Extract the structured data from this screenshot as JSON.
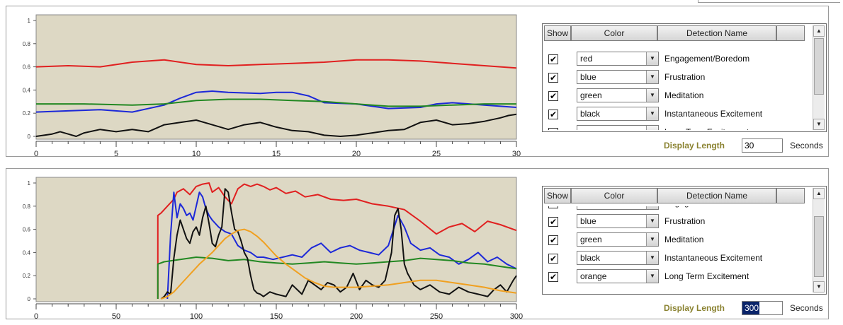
{
  "panels": [
    {
      "display_length_label": "Display Length",
      "display_length_value": "30",
      "display_length_unit": "Seconds",
      "headers": {
        "show": "Show",
        "color": "Color",
        "name": "Detection Name"
      },
      "rows": [
        {
          "checked": true,
          "color": "red",
          "name": "Engagement/Boredom"
        },
        {
          "checked": true,
          "color": "blue",
          "name": "Frustration"
        },
        {
          "checked": true,
          "color": "green",
          "name": "Meditation"
        },
        {
          "checked": true,
          "color": "black",
          "name": "Instantaneous Excitement"
        },
        {
          "checked": true,
          "color": "orange",
          "name": "Long Term Excitement"
        }
      ],
      "scroll_index": 0,
      "chart": {
        "type": "line",
        "xlim": [
          0,
          30
        ],
        "ylim": [
          0,
          1
        ],
        "xticks": [
          "0",
          "5",
          "10",
          "15",
          "20",
          "25",
          "30"
        ],
        "yticks": [
          "0",
          "0.2",
          "0.4",
          "0.6",
          "0.8",
          "1"
        ],
        "series": [
          {
            "color": "#e02020",
            "x": [
              0,
              2,
              4,
              6,
              8,
              10,
              12,
              14,
              16,
              18,
              20,
              22,
              24,
              26,
              28,
              30
            ],
            "y": [
              0.6,
              0.61,
              0.6,
              0.64,
              0.66,
              0.62,
              0.61,
              0.62,
              0.63,
              0.64,
              0.66,
              0.66,
              0.65,
              0.63,
              0.61,
              0.59
            ]
          },
          {
            "color": "#1c28d8",
            "x": [
              0,
              2,
              4,
              6,
              8,
              9,
              10,
              11,
              12,
              14,
              15,
              16,
              17,
              18,
              20,
              22,
              24,
              25,
              26,
              28,
              30
            ],
            "y": [
              0.21,
              0.22,
              0.23,
              0.21,
              0.27,
              0.33,
              0.38,
              0.39,
              0.38,
              0.37,
              0.38,
              0.38,
              0.35,
              0.29,
              0.28,
              0.24,
              0.25,
              0.28,
              0.29,
              0.27,
              0.25
            ]
          },
          {
            "color": "#228822",
            "x": [
              0,
              3,
              6,
              8,
              10,
              12,
              14,
              16,
              18,
              20,
              22,
              24,
              26,
              28,
              30
            ],
            "y": [
              0.28,
              0.28,
              0.27,
              0.28,
              0.31,
              0.32,
              0.32,
              0.31,
              0.3,
              0.28,
              0.26,
              0.26,
              0.27,
              0.28,
              0.28
            ]
          },
          {
            "color": "#111111",
            "x": [
              0,
              1,
              1.5,
              2,
              2.5,
              3,
              4,
              5,
              6,
              7,
              8,
              9,
              10,
              11,
              12,
              13,
              14,
              15,
              16,
              17,
              18,
              19,
              20,
              21,
              22,
              23,
              24,
              25,
              26,
              27,
              28,
              29,
              29.5,
              30
            ],
            "y": [
              0.0,
              0.02,
              0.04,
              0.02,
              0.0,
              0.03,
              0.06,
              0.04,
              0.06,
              0.04,
              0.1,
              0.12,
              0.14,
              0.1,
              0.06,
              0.1,
              0.12,
              0.08,
              0.05,
              0.04,
              0.01,
              0.0,
              0.01,
              0.03,
              0.05,
              0.06,
              0.12,
              0.14,
              0.1,
              0.11,
              0.13,
              0.16,
              0.18,
              0.19
            ]
          }
        ]
      }
    },
    {
      "display_length_label": "Display Length",
      "display_length_value": "300",
      "display_length_unit": "Seconds",
      "headers": {
        "show": "Show",
        "color": "Color",
        "name": "Detection Name"
      },
      "rows": [
        {
          "checked": true,
          "color": "red",
          "name": "Engagement/Boredom"
        },
        {
          "checked": true,
          "color": "blue",
          "name": "Frustration"
        },
        {
          "checked": true,
          "color": "green",
          "name": "Meditation"
        },
        {
          "checked": true,
          "color": "black",
          "name": "Instantaneous Excitement"
        },
        {
          "checked": true,
          "color": "orange",
          "name": "Long Term Excitement"
        }
      ],
      "scroll_index": 1,
      "chart": {
        "type": "line",
        "xlim": [
          0,
          300
        ],
        "ylim": [
          0,
          1
        ],
        "xticks": [
          "0",
          "50",
          "100",
          "150",
          "200",
          "250",
          "300"
        ],
        "yticks": [
          "0",
          "0.2",
          "0.4",
          "0.6",
          "0.8",
          "1"
        ],
        "series": [
          {
            "color": "#e02020",
            "x": [
              76,
              76,
              78,
              82,
              86,
              88,
              92,
              96,
              100,
              104,
              108,
              110,
              114,
              118,
              122,
              126,
              130,
              134,
              138,
              142,
              146,
              150,
              156,
              162,
              168,
              176,
              184,
              192,
              200,
              210,
              220,
              230,
              240,
              250,
              258,
              266,
              274,
              282,
              290,
              300
            ],
            "y": [
              0.0,
              0.72,
              0.74,
              0.8,
              0.86,
              0.92,
              0.95,
              0.9,
              0.97,
              0.99,
              1.0,
              0.92,
              0.96,
              0.88,
              0.82,
              0.95,
              0.99,
              0.97,
              0.99,
              0.97,
              0.94,
              0.96,
              0.91,
              0.93,
              0.88,
              0.9,
              0.86,
              0.85,
              0.86,
              0.82,
              0.8,
              0.77,
              0.67,
              0.56,
              0.62,
              0.65,
              0.58,
              0.67,
              0.64,
              0.59
            ]
          },
          {
            "color": "#1c28d8",
            "x": [
              82,
              84,
              86,
              88,
              90,
              92,
              94,
              96,
              98,
              100,
              102,
              104,
              106,
              108,
              110,
              114,
              118,
              122,
              126,
              130,
              134,
              138,
              142,
              148,
              154,
              160,
              166,
              172,
              178,
              184,
              190,
              196,
              202,
              208,
              214,
              220,
              226,
              230,
              234,
              240,
              246,
              252,
              258,
              264,
              270,
              276,
              282,
              288,
              294,
              300
            ],
            "y": [
              0.0,
              0.55,
              0.92,
              0.7,
              0.82,
              0.78,
              0.72,
              0.74,
              0.68,
              0.8,
              0.92,
              0.88,
              0.78,
              0.72,
              0.68,
              0.62,
              0.58,
              0.56,
              0.46,
              0.42,
              0.4,
              0.36,
              0.36,
              0.34,
              0.36,
              0.38,
              0.36,
              0.44,
              0.48,
              0.4,
              0.44,
              0.46,
              0.42,
              0.4,
              0.38,
              0.46,
              0.72,
              0.62,
              0.48,
              0.42,
              0.44,
              0.38,
              0.36,
              0.3,
              0.34,
              0.4,
              0.32,
              0.36,
              0.3,
              0.26
            ]
          },
          {
            "color": "#228822",
            "x": [
              76,
              76,
              80,
              90,
              100,
              110,
              120,
              130,
              140,
              150,
              160,
              170,
              180,
              190,
              200,
              210,
              220,
              230,
              240,
              250,
              260,
              270,
              280,
              290,
              300
            ],
            "y": [
              0.0,
              0.3,
              0.32,
              0.34,
              0.36,
              0.35,
              0.33,
              0.34,
              0.32,
              0.31,
              0.3,
              0.31,
              0.32,
              0.31,
              0.3,
              0.31,
              0.32,
              0.33,
              0.35,
              0.34,
              0.33,
              0.31,
              0.3,
              0.28,
              0.26
            ]
          },
          {
            "color": "#111111",
            "x": [
              78,
              80,
              82,
              84,
              86,
              88,
              90,
              92,
              94,
              96,
              98,
              100,
              102,
              104,
              106,
              108,
              110,
              112,
              114,
              116,
              118,
              120,
              122,
              124,
              126,
              128,
              130,
              132,
              134,
              136,
              138,
              140,
              142,
              146,
              150,
              156,
              160,
              166,
              170,
              174,
              178,
              182,
              186,
              190,
              194,
              198,
              202,
              206,
              210,
              214,
              218,
              222,
              224,
              226,
              228,
              230,
              232,
              236,
              240,
              246,
              252,
              258,
              264,
              270,
              276,
              282,
              286,
              290,
              294,
              298,
              300
            ],
            "y": [
              0.0,
              0.02,
              0.06,
              0.04,
              0.35,
              0.55,
              0.68,
              0.6,
              0.52,
              0.48,
              0.58,
              0.62,
              0.55,
              0.7,
              0.8,
              0.65,
              0.48,
              0.45,
              0.55,
              0.62,
              0.95,
              0.92,
              0.75,
              0.6,
              0.58,
              0.5,
              0.4,
              0.35,
              0.2,
              0.08,
              0.05,
              0.04,
              0.02,
              0.06,
              0.04,
              0.02,
              0.12,
              0.04,
              0.16,
              0.12,
              0.08,
              0.14,
              0.12,
              0.06,
              0.1,
              0.22,
              0.08,
              0.16,
              0.12,
              0.1,
              0.16,
              0.4,
              0.72,
              0.78,
              0.6,
              0.3,
              0.22,
              0.12,
              0.08,
              0.12,
              0.06,
              0.04,
              0.1,
              0.06,
              0.04,
              0.02,
              0.08,
              0.12,
              0.06,
              0.16,
              0.2
            ]
          },
          {
            "color": "#f0a020",
            "x": [
              78,
              82,
              86,
              90,
              94,
              98,
              102,
              106,
              110,
              114,
              118,
              122,
              126,
              130,
              134,
              138,
              142,
              146,
              150,
              156,
              162,
              168,
              174,
              180,
              186,
              192,
              200,
              210,
              220,
              230,
              240,
              250,
              260,
              270,
              280,
              290,
              300
            ],
            "y": [
              0.0,
              0.02,
              0.06,
              0.12,
              0.18,
              0.24,
              0.3,
              0.35,
              0.4,
              0.46,
              0.52,
              0.56,
              0.59,
              0.6,
              0.58,
              0.54,
              0.49,
              0.43,
              0.37,
              0.3,
              0.24,
              0.18,
              0.14,
              0.11,
              0.1,
              0.1,
              0.1,
              0.11,
              0.12,
              0.14,
              0.16,
              0.16,
              0.14,
              0.12,
              0.1,
              0.07,
              0.05
            ]
          }
        ]
      }
    }
  ],
  "selected_text_panel": 1
}
